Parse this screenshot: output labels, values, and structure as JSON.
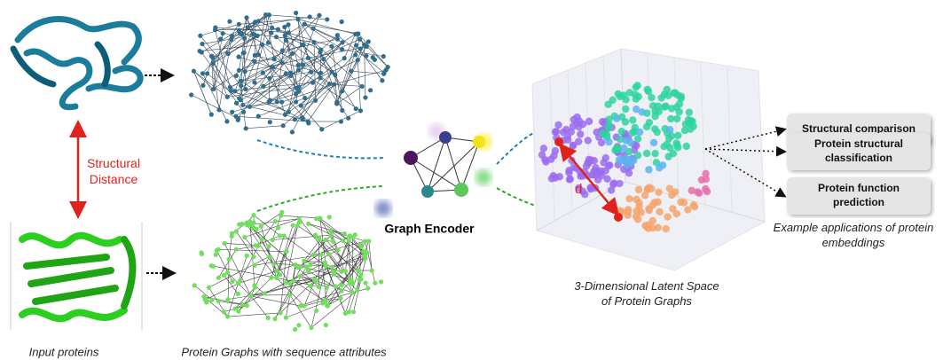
{
  "labels": {
    "structural_distance": [
      "Structural",
      "Distance"
    ],
    "graph_encoder": "Graph Encoder",
    "distance_symbol": "d",
    "latent_space": [
      "3-Dimensional Latent Space",
      "of Protein Graphs"
    ],
    "applications": [
      [
        "Structural comparison"
      ],
      [
        "Protein structural",
        "classification"
      ],
      [
        "Protein function",
        "prediction"
      ]
    ],
    "applications_caption": [
      "Example applications of protein",
      "embeddings"
    ],
    "input_proteins": "Input proteins",
    "protein_graphs": "Protein Graphs with sequence attributes"
  }
}
